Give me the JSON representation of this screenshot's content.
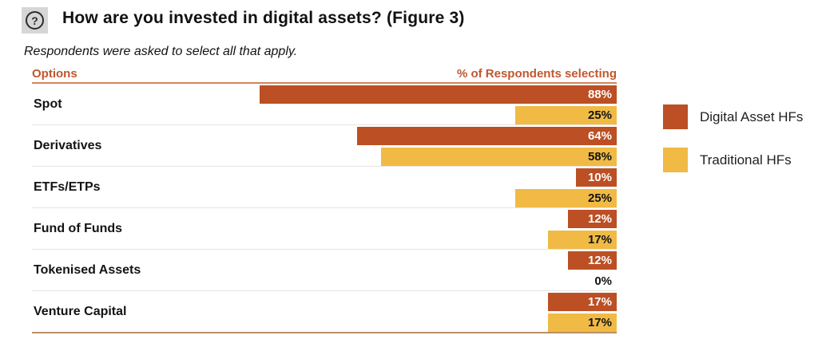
{
  "header": {
    "icon": "question-mark-icon",
    "title": "How are you invested in digital assets? (Figure 3)",
    "subtitle": "Respondents were asked to select all that apply.",
    "question_glyph": "?"
  },
  "table": {
    "options_header": "Options",
    "value_header": "% of Respondents selecting"
  },
  "legend": {
    "items": [
      {
        "label": "Digital Asset HFs",
        "color": "#BC4F23"
      },
      {
        "label": "Traditional HFs",
        "color": "#F0BA45"
      }
    ]
  },
  "colors": {
    "digital_asset_bar": "#BC4F23",
    "traditional_bar": "#F0BA45",
    "column_header_text": "#C0572E",
    "header_underline": "#D4855B",
    "bottom_border": "#BA8F66",
    "row_separator": "#E7E5E2"
  },
  "chart_data": {
    "type": "bar",
    "orientation": "horizontal",
    "bar_alignment": "right",
    "title": "How are you invested in digital assets? (Figure 3)",
    "subtitle": "Respondents were asked to select all that apply.",
    "xlabel": "% of Respondents selecting",
    "ylabel": "Options",
    "xlim": [
      0,
      100
    ],
    "value_suffix": "%",
    "grid": false,
    "legend_position": "right",
    "categories": [
      "Spot",
      "Derivatives",
      "ETFs/ETPs",
      "Fund of Funds",
      "Tokenised Assets",
      "Venture Capital"
    ],
    "series": [
      {
        "name": "Digital Asset HFs",
        "color": "#BC4F23",
        "values": [
          88,
          64,
          10,
          12,
          12,
          17
        ]
      },
      {
        "name": "Traditional HFs",
        "color": "#F0BA45",
        "values": [
          25,
          58,
          25,
          17,
          0,
          17
        ]
      }
    ]
  }
}
